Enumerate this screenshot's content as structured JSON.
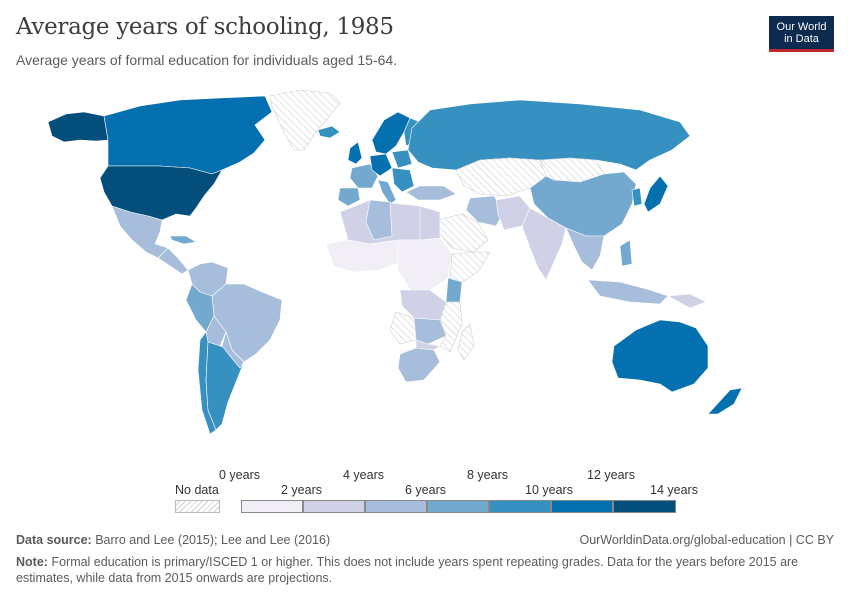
{
  "header": {
    "title": "Average years of schooling, 1985",
    "subtitle": "Average years of formal education for individuals aged 15-64.",
    "logo_line1": "Our World",
    "logo_line2": "in Data"
  },
  "legend": {
    "no_data_label": "No data",
    "ticks": [
      "0 years",
      "2 years",
      "4 years",
      "6 years",
      "8 years",
      "10 years",
      "12 years",
      "14 years"
    ],
    "colors": [
      "#f1eef6",
      "#d0d1e6",
      "#a6bddb",
      "#74a9cf",
      "#3690c0",
      "#0570b0",
      "#034e7b"
    ]
  },
  "footer": {
    "source_label": "Data source:",
    "source_text": "Barro and Lee (2015); Lee and Lee (2016)",
    "url": "OurWorldinData.org/global-education | CC BY",
    "note_label": "Note:",
    "note_text": "Formal education is primary/ISCED 1 or higher. This does not include years spent repeating grades. Data for the years before 2015 are estimates, while data from 2015 onwards are projections."
  },
  "colors": {
    "no_data": "#f2f2f2",
    "border": "#ffffff",
    "bin0": "#f1eef6",
    "bin1": "#d0d1e6",
    "bin2": "#a6bddb",
    "bin3": "#74a9cf",
    "bin4": "#3690c0",
    "bin5": "#0570b0",
    "bin6": "#034e7b"
  }
}
